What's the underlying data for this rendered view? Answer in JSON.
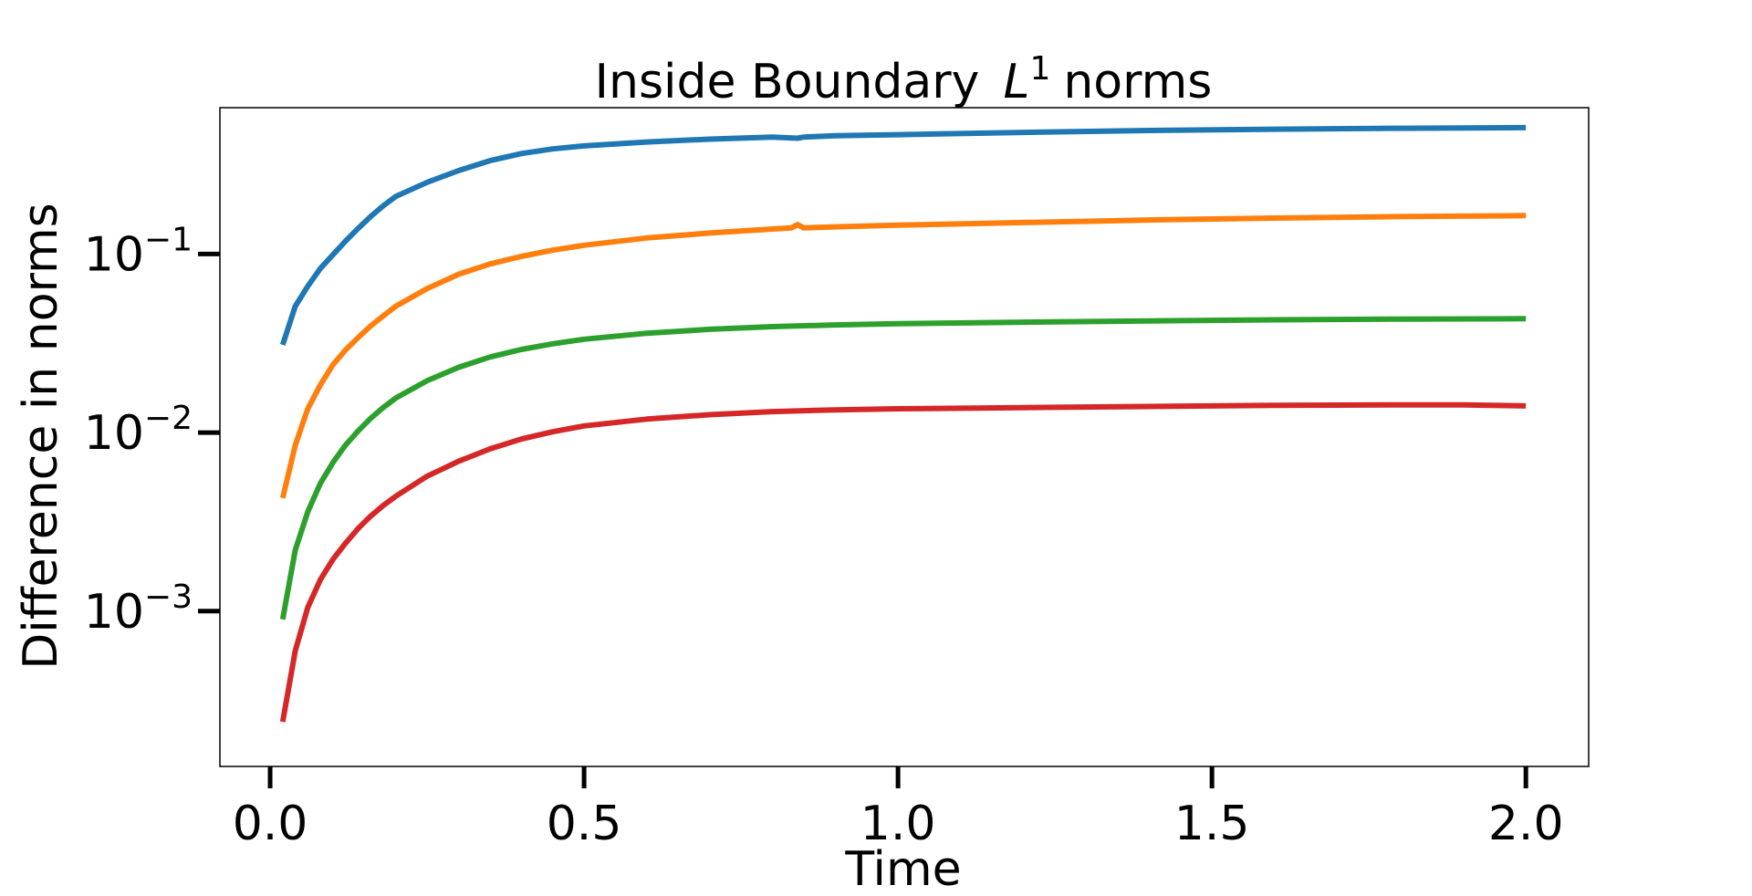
{
  "chart_data": {
    "type": "line",
    "title": "Inside Boundary",
    "title_math_base": "L",
    "title_math_sup": "1",
    "title_suffix": "norms",
    "xlabel": "Time",
    "ylabel": "Difference in norms",
    "xlim": [
      -0.08,
      2.1
    ],
    "ylim": [
      0.000135,
      0.66
    ],
    "yscale": "log",
    "grid": false,
    "legend": "none",
    "xticks": [
      {
        "value": 0.0,
        "label": "0.0"
      },
      {
        "value": 0.5,
        "label": "0.5"
      },
      {
        "value": 1.0,
        "label": "1.0"
      },
      {
        "value": 1.5,
        "label": "1.5"
      },
      {
        "value": 2.0,
        "label": "2.0"
      }
    ],
    "yticks": [
      {
        "value": 0.1,
        "base": "10",
        "exp": "−1"
      },
      {
        "value": 0.01,
        "base": "10",
        "exp": "−2"
      },
      {
        "value": 0.001,
        "base": "10",
        "exp": "−3"
      }
    ],
    "series": [
      {
        "color": "#1f77b4",
        "x": [
          0.02,
          0.04,
          0.06,
          0.08,
          0.1,
          0.12,
          0.14,
          0.16,
          0.18,
          0.2,
          0.25,
          0.3,
          0.35,
          0.4,
          0.45,
          0.5,
          0.6,
          0.7,
          0.8,
          0.84,
          0.85,
          0.9,
          1.0,
          1.2,
          1.4,
          1.6,
          1.8,
          2.0
        ],
        "y": [
          0.031,
          0.051,
          0.066,
          0.083,
          0.099,
          0.118,
          0.139,
          0.162,
          0.186,
          0.21,
          0.252,
          0.293,
          0.333,
          0.365,
          0.388,
          0.403,
          0.424,
          0.44,
          0.452,
          0.445,
          0.452,
          0.46,
          0.466,
          0.48,
          0.492,
          0.5,
          0.506,
          0.51
        ]
      },
      {
        "color": "#ff7f0e",
        "x": [
          0.02,
          0.04,
          0.06,
          0.08,
          0.1,
          0.12,
          0.14,
          0.16,
          0.18,
          0.2,
          0.25,
          0.3,
          0.35,
          0.4,
          0.45,
          0.5,
          0.6,
          0.7,
          0.8,
          0.83,
          0.84,
          0.85,
          0.9,
          1.0,
          1.2,
          1.4,
          1.6,
          1.8,
          2.0
        ],
        "y": [
          0.0043,
          0.0085,
          0.0136,
          0.0185,
          0.024,
          0.029,
          0.034,
          0.0395,
          0.045,
          0.051,
          0.064,
          0.077,
          0.088,
          0.097,
          0.105,
          0.112,
          0.123,
          0.131,
          0.138,
          0.14,
          0.146,
          0.14,
          0.142,
          0.145,
          0.15,
          0.155,
          0.159,
          0.162,
          0.164
        ]
      },
      {
        "color": "#2ca02c",
        "x": [
          0.02,
          0.04,
          0.06,
          0.08,
          0.1,
          0.12,
          0.14,
          0.16,
          0.18,
          0.2,
          0.25,
          0.3,
          0.35,
          0.4,
          0.45,
          0.5,
          0.6,
          0.7,
          0.8,
          0.9,
          1.0,
          1.2,
          1.4,
          1.6,
          1.8,
          2.0
        ],
        "y": [
          0.0009,
          0.0022,
          0.0036,
          0.0052,
          0.0068,
          0.0085,
          0.0102,
          0.012,
          0.0138,
          0.0156,
          0.0195,
          0.0232,
          0.0265,
          0.0292,
          0.0314,
          0.0333,
          0.036,
          0.0379,
          0.0392,
          0.0401,
          0.0407,
          0.0415,
          0.0422,
          0.0428,
          0.0432,
          0.0434
        ]
      },
      {
        "color": "#d62728",
        "x": [
          0.02,
          0.04,
          0.06,
          0.08,
          0.1,
          0.12,
          0.14,
          0.16,
          0.18,
          0.2,
          0.25,
          0.3,
          0.35,
          0.4,
          0.45,
          0.5,
          0.6,
          0.7,
          0.8,
          0.9,
          1.0,
          1.2,
          1.4,
          1.6,
          1.8,
          1.9,
          2.0
        ],
        "y": [
          0.00024,
          0.0006,
          0.00105,
          0.0015,
          0.00195,
          0.0024,
          0.0029,
          0.0034,
          0.0039,
          0.0044,
          0.0057,
          0.0069,
          0.0081,
          0.0092,
          0.0101,
          0.0109,
          0.0119,
          0.0126,
          0.0131,
          0.0134,
          0.0136,
          0.0138,
          0.014,
          0.0142,
          0.0143,
          0.0143,
          0.0141
        ]
      }
    ]
  }
}
